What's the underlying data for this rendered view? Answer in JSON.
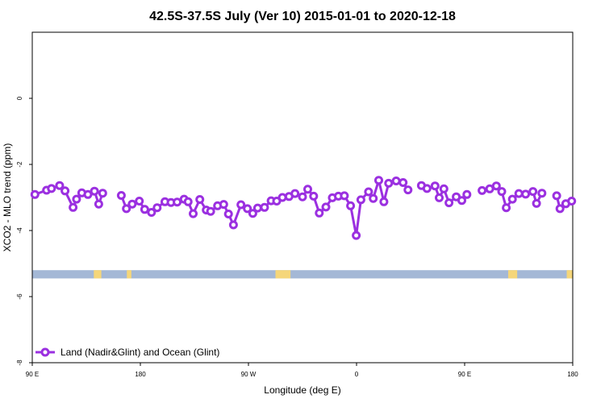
{
  "chart_data": {
    "type": "line",
    "title": "42.5S-37.5S July (Ver 10)   2015-01-01 to 2020-12-18",
    "xlabel": "Longitude (deg E)",
    "ylabel": "XCO2 - MLO trend (ppm)",
    "xlim": [
      90,
      450
    ],
    "ylim": [
      -8,
      2
    ],
    "x_ticks": [
      {
        "value": 90,
        "label": "90 E"
      },
      {
        "value": 162,
        "label": "180"
      },
      {
        "value": 234,
        "label": "90 W"
      },
      {
        "value": 306,
        "label": "0"
      },
      {
        "value": 378,
        "label": "90 E"
      },
      {
        "value": 450,
        "label": "180"
      }
    ],
    "y_ticks": [
      {
        "value": 0,
        "label": "0"
      },
      {
        "value": -2,
        "label": "-2"
      },
      {
        "value": -4,
        "label": "-4"
      },
      {
        "value": -6,
        "label": "-6"
      },
      {
        "value": -8,
        "label": "-8"
      }
    ],
    "series": [
      {
        "name": "Land (Nadir&Glint) and Ocean (Glint)",
        "color": "#9b30e0",
        "segments": [
          [
            [
              91.8,
              -2.91
            ],
            [
              99.5,
              -2.78
            ],
            [
              102.8,
              -2.73
            ],
            [
              108.2,
              -2.64
            ],
            [
              111.8,
              -2.8
            ],
            [
              117.2,
              -3.3
            ],
            [
              119.5,
              -3.05
            ],
            [
              123.0,
              -2.86
            ],
            [
              127.1,
              -2.91
            ],
            [
              131.4,
              -2.81
            ],
            [
              134.3,
              -3.2
            ],
            [
              136.9,
              -2.87
            ]
          ],
          [
            [
              149.3,
              -2.94
            ],
            [
              152.7,
              -3.34
            ],
            [
              156.6,
              -3.2
            ],
            [
              161.3,
              -3.11
            ],
            [
              164.9,
              -3.36
            ],
            [
              169.4,
              -3.45
            ],
            [
              173.2,
              -3.31
            ],
            [
              178.4,
              -3.13
            ],
            [
              182.4,
              -3.15
            ],
            [
              186.5,
              -3.14
            ],
            [
              191.1,
              -3.05
            ],
            [
              193.8,
              -3.13
            ],
            [
              197.2,
              -3.49
            ],
            [
              201.6,
              -3.06
            ],
            [
              205.9,
              -3.38
            ],
            [
              208.8,
              -3.42
            ],
            [
              213.4,
              -3.25
            ],
            [
              217.5,
              -3.21
            ],
            [
              220.7,
              -3.5
            ],
            [
              224.0,
              -3.83
            ],
            [
              229.0,
              -3.22
            ],
            [
              233.3,
              -3.34
            ],
            [
              236.9,
              -3.48
            ],
            [
              240.1,
              -3.32
            ],
            [
              244.7,
              -3.3
            ],
            [
              249.1,
              -3.1
            ],
            [
              252.8,
              -3.11
            ],
            [
              256.6,
              -3.0
            ],
            [
              261.0,
              -2.97
            ],
            [
              265.0,
              -2.88
            ],
            [
              270.0,
              -2.98
            ],
            [
              273.5,
              -2.75
            ],
            [
              277.4,
              -2.96
            ],
            [
              281.2,
              -3.47
            ],
            [
              285.6,
              -3.29
            ],
            [
              289.9,
              -3.01
            ],
            [
              293.9,
              -2.96
            ],
            [
              297.9,
              -2.95
            ],
            [
              302.0,
              -3.25
            ],
            [
              305.8,
              -4.15
            ],
            [
              308.9,
              -3.07
            ],
            [
              314.0,
              -2.83
            ],
            [
              317.1,
              -3.03
            ],
            [
              320.8,
              -2.48
            ],
            [
              324.2,
              -3.13
            ],
            [
              327.4,
              -2.57
            ],
            [
              332.4,
              -2.5
            ],
            [
              337.0,
              -2.55
            ],
            [
              340.3,
              -2.77
            ]
          ]
        ],
        "segments_2": [
          [
            [
              349.2,
              -2.64
            ],
            [
              352.9,
              -2.73
            ],
            [
              358.3,
              -2.65
            ],
            [
              361.1,
              -3.01
            ],
            [
              364.2,
              -2.74
            ],
            [
              367.6,
              -3.16
            ],
            [
              372.4,
              -2.98
            ],
            [
              376.1,
              -3.09
            ],
            [
              379.5,
              -2.91
            ]
          ],
          [
            [
              389.6,
              -2.79
            ],
            [
              394.7,
              -2.74
            ],
            [
              399.1,
              -2.65
            ],
            [
              402.7,
              -2.82
            ],
            [
              405.7,
              -3.31
            ],
            [
              409.8,
              -3.05
            ],
            [
              414.1,
              -2.88
            ],
            [
              418.6,
              -2.9
            ],
            [
              423.5,
              -2.82
            ],
            [
              425.9,
              -3.18
            ],
            [
              429.5,
              -2.87
            ]
          ],
          [
            [
              439.3,
              -2.95
            ],
            [
              441.5,
              -3.34
            ],
            [
              445.4,
              -3.19
            ],
            [
              449.3,
              -3.11
            ]
          ]
        ]
      }
    ],
    "land_ocean_bar": {
      "ocean_color": "#a4b8d6",
      "land_color": "#f5d67a",
      "y_top": -5.2,
      "y_bottom": -5.45,
      "land_ranges": [
        [
          131,
          136
        ],
        [
          153,
          156
        ],
        [
          252,
          262
        ],
        [
          407,
          413
        ],
        [
          446,
          450
        ]
      ]
    },
    "legend": {
      "position": "bottom-left",
      "label": "Land (Nadir&Glint) and Ocean (Glint)"
    },
    "grid": false
  }
}
